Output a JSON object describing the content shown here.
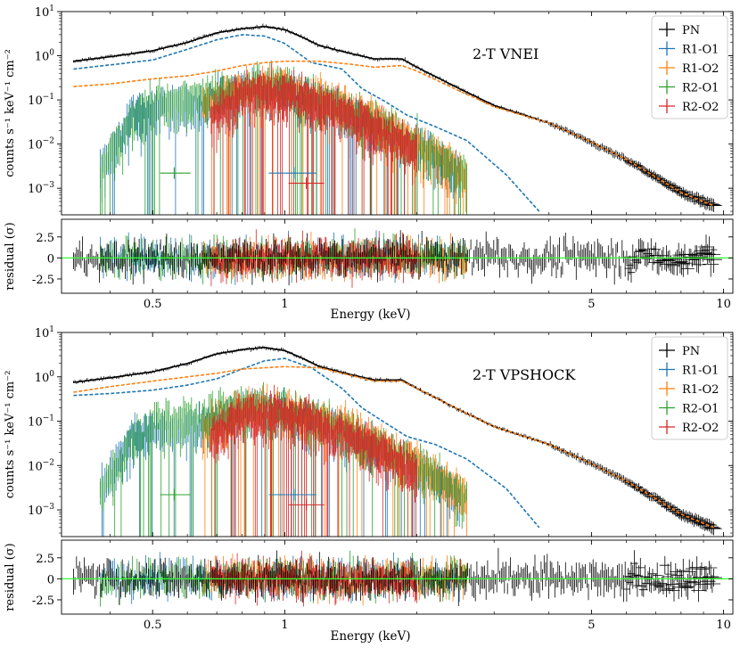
{
  "chart_data": [
    {
      "type": "line",
      "label": "2-T VNEI",
      "xlabel": "Energy (keV)",
      "ylabel": "counts s⁻¹ keV⁻¹ cm⁻²",
      "residual_ylabel": "residual (σ)",
      "xscale": "log",
      "yscale": "log",
      "xlim": [
        0.31,
        10.5
      ],
      "ylim": [
        0.00025,
        10
      ],
      "residual_ylim": [
        -4.2,
        4.6
      ],
      "xticks": [
        0.5,
        1,
        5,
        10
      ],
      "yticks": [
        {
          "value": 10,
          "base": "10",
          "exp": "1"
        },
        {
          "value": 1,
          "base": "10",
          "exp": "0"
        },
        {
          "value": 0.1,
          "base": "10",
          "exp": "−1"
        },
        {
          "value": 0.01,
          "base": "10",
          "exp": "−2"
        },
        {
          "value": 0.001,
          "base": "10",
          "exp": "−3"
        }
      ],
      "residual_yticks": [
        2.5,
        0,
        -2.5
      ],
      "legend": [
        "PN",
        "R1-O1",
        "R1-O2",
        "R2-O1",
        "R2-O2"
      ],
      "series": [
        {
          "name": "PN",
          "color": "#000000",
          "x": [
            0.33,
            0.4,
            0.5,
            0.6,
            0.7,
            0.8,
            0.9,
            1.0,
            1.1,
            1.2,
            1.4,
            1.6,
            1.85,
            2.0,
            2.5,
            3.0,
            4.0,
            5.0,
            6.0,
            7.0,
            8.0,
            9.5
          ],
          "y": [
            0.75,
            0.95,
            1.3,
            2.0,
            3.3,
            4.1,
            4.6,
            3.9,
            2.6,
            1.7,
            1.15,
            0.85,
            0.85,
            0.55,
            0.18,
            0.075,
            0.03,
            0.011,
            0.0045,
            0.0018,
            0.0008,
            0.0004
          ]
        },
        {
          "name": "R1-O1",
          "color": "#1f77b4",
          "x": [
            0.38,
            0.45,
            0.55,
            0.65,
            0.75,
            0.85,
            1.0,
            1.15,
            1.3,
            1.5,
            1.7,
            1.9,
            2.2,
            2.5
          ],
          "y": [
            0.003,
            0.05,
            0.08,
            0.08,
            0.15,
            0.25,
            0.18,
            0.12,
            0.07,
            0.035,
            0.02,
            0.012,
            0.006,
            0.002
          ]
        },
        {
          "name": "R1-O2",
          "color": "#ff7f0e",
          "x": [
            0.65,
            0.8,
            1.0,
            1.2,
            1.4,
            1.6,
            1.8,
            2.0,
            2.3,
            2.6
          ],
          "y": [
            0.08,
            0.2,
            0.2,
            0.12,
            0.07,
            0.04,
            0.02,
            0.012,
            0.005,
            0.002
          ]
        },
        {
          "name": "R2-O1",
          "color": "#2ca02c",
          "x": [
            0.38,
            0.45,
            0.5,
            0.55,
            0.6,
            0.7,
            0.8,
            0.9,
            1.0,
            1.2,
            1.4,
            1.6,
            1.9,
            2.2,
            2.6
          ],
          "y": [
            0.003,
            0.04,
            0.09,
            0.1,
            0.12,
            0.16,
            0.22,
            0.25,
            0.22,
            0.12,
            0.06,
            0.035,
            0.015,
            0.006,
            0.002
          ]
        },
        {
          "name": "R2-O2",
          "color": "#d62728",
          "x": [
            0.68,
            0.8,
            0.95,
            1.1,
            1.3,
            1.5,
            1.8,
            2.0
          ],
          "y": [
            0.05,
            0.15,
            0.18,
            0.13,
            0.07,
            0.04,
            0.015,
            0.008
          ]
        }
      ],
      "models": [
        {
          "name": "model-total",
          "color": "#000000",
          "style": "solid",
          "x": [
            0.33,
            0.4,
            0.5,
            0.6,
            0.7,
            0.8,
            0.9,
            1.0,
            1.1,
            1.2,
            1.4,
            1.6,
            1.85,
            2.0,
            2.5,
            3.0,
            4.0,
            5.0,
            6.0,
            7.0,
            8.0,
            9.5
          ],
          "y": [
            0.75,
            0.95,
            1.3,
            2.0,
            3.3,
            4.1,
            4.6,
            3.9,
            2.6,
            1.7,
            1.15,
            0.85,
            0.85,
            0.55,
            0.18,
            0.075,
            0.03,
            0.011,
            0.0045,
            0.0018,
            0.0008,
            0.0004
          ]
        },
        {
          "name": "cool-component",
          "color": "#1f77b4",
          "style": "dashed",
          "x": [
            0.33,
            0.4,
            0.5,
            0.6,
            0.7,
            0.8,
            0.9,
            1.0,
            1.15,
            1.35,
            1.5,
            1.7,
            1.9,
            2.2,
            2.6,
            3.2,
            3.8
          ],
          "y": [
            0.5,
            0.62,
            0.8,
            1.4,
            2.3,
            3.0,
            2.8,
            1.9,
            0.7,
            0.5,
            0.18,
            0.09,
            0.045,
            0.025,
            0.012,
            0.002,
            0.0003
          ]
        },
        {
          "name": "hot-component",
          "color": "#ff7f0e",
          "style": "dashed",
          "x": [
            0.33,
            0.4,
            0.5,
            0.6,
            0.7,
            0.8,
            0.9,
            1.0,
            1.2,
            1.4,
            1.6,
            1.85,
            2.0,
            2.5,
            3.0,
            4.0,
            5.0,
            6.0,
            7.0,
            8.0,
            9.5
          ],
          "y": [
            0.2,
            0.23,
            0.3,
            0.35,
            0.45,
            0.6,
            0.7,
            0.75,
            0.75,
            0.65,
            0.55,
            0.6,
            0.45,
            0.16,
            0.07,
            0.03,
            0.011,
            0.0045,
            0.0018,
            0.0008,
            0.0004
          ]
        }
      ]
    },
    {
      "type": "line",
      "label": "2-T VPSHOCK",
      "xlabel": "Energy (keV)",
      "ylabel": "counts s⁻¹ keV⁻¹ cm⁻²",
      "residual_ylabel": "residual (σ)",
      "xscale": "log",
      "yscale": "log",
      "xlim": [
        0.31,
        10.5
      ],
      "ylim": [
        0.00025,
        10
      ],
      "residual_ylim": [
        -4.2,
        4.6
      ],
      "xticks": [
        0.5,
        1,
        5,
        10
      ],
      "yticks": [
        {
          "value": 10,
          "base": "10",
          "exp": "1"
        },
        {
          "value": 1,
          "base": "10",
          "exp": "0"
        },
        {
          "value": 0.1,
          "base": "10",
          "exp": "−1"
        },
        {
          "value": 0.01,
          "base": "10",
          "exp": "−2"
        },
        {
          "value": 0.001,
          "base": "10",
          "exp": "−3"
        }
      ],
      "residual_yticks": [
        2.5,
        0,
        -2.5
      ],
      "legend": [
        "PN",
        "R1-O1",
        "R1-O2",
        "R2-O1",
        "R2-O2"
      ],
      "series": [
        {
          "name": "PN",
          "color": "#000000",
          "x": [
            0.33,
            0.4,
            0.5,
            0.6,
            0.7,
            0.8,
            0.9,
            1.0,
            1.1,
            1.2,
            1.4,
            1.6,
            1.85,
            2.0,
            2.5,
            3.0,
            4.0,
            5.0,
            6.0,
            7.0,
            8.0,
            9.5
          ],
          "y": [
            0.75,
            0.95,
            1.3,
            2.0,
            3.3,
            4.1,
            4.6,
            3.9,
            2.6,
            1.7,
            1.15,
            0.85,
            0.85,
            0.55,
            0.18,
            0.075,
            0.03,
            0.011,
            0.0045,
            0.0018,
            0.0008,
            0.0004
          ]
        },
        {
          "name": "R1-O1",
          "color": "#1f77b4",
          "x": [
            0.38,
            0.45,
            0.55,
            0.65,
            0.75,
            0.85,
            1.0,
            1.15,
            1.3,
            1.5,
            1.7,
            1.9,
            2.2,
            2.5
          ],
          "y": [
            0.003,
            0.05,
            0.08,
            0.08,
            0.15,
            0.25,
            0.18,
            0.12,
            0.07,
            0.035,
            0.02,
            0.012,
            0.006,
            0.002
          ]
        },
        {
          "name": "R1-O2",
          "color": "#ff7f0e",
          "x": [
            0.65,
            0.8,
            1.0,
            1.2,
            1.4,
            1.6,
            1.8,
            2.0,
            2.3,
            2.6
          ],
          "y": [
            0.08,
            0.2,
            0.2,
            0.12,
            0.07,
            0.04,
            0.02,
            0.012,
            0.005,
            0.002
          ]
        },
        {
          "name": "R2-O1",
          "color": "#2ca02c",
          "x": [
            0.38,
            0.45,
            0.5,
            0.55,
            0.6,
            0.7,
            0.8,
            0.9,
            1.0,
            1.2,
            1.4,
            1.6,
            1.9,
            2.2,
            2.6
          ],
          "y": [
            0.003,
            0.04,
            0.09,
            0.1,
            0.12,
            0.16,
            0.22,
            0.25,
            0.22,
            0.12,
            0.06,
            0.035,
            0.015,
            0.006,
            0.002
          ]
        },
        {
          "name": "R2-O2",
          "color": "#d62728",
          "x": [
            0.68,
            0.8,
            0.95,
            1.1,
            1.3,
            1.5,
            1.8,
            2.0
          ],
          "y": [
            0.05,
            0.15,
            0.18,
            0.13,
            0.07,
            0.04,
            0.015,
            0.008
          ]
        }
      ],
      "models": [
        {
          "name": "model-total",
          "color": "#000000",
          "style": "solid",
          "x": [
            0.33,
            0.4,
            0.5,
            0.6,
            0.7,
            0.8,
            0.9,
            1.0,
            1.1,
            1.2,
            1.4,
            1.6,
            1.85,
            2.0,
            2.5,
            3.0,
            4.0,
            5.0,
            6.0,
            7.0,
            8.0,
            9.5
          ],
          "y": [
            0.75,
            0.95,
            1.3,
            2.0,
            3.3,
            4.1,
            4.6,
            3.9,
            2.6,
            1.7,
            1.15,
            0.85,
            0.85,
            0.55,
            0.18,
            0.075,
            0.03,
            0.011,
            0.0045,
            0.0018,
            0.0008,
            0.0004
          ]
        },
        {
          "name": "cool-component",
          "color": "#1f77b4",
          "style": "dashed",
          "x": [
            0.33,
            0.4,
            0.5,
            0.6,
            0.7,
            0.8,
            0.9,
            1.0,
            1.15,
            1.35,
            1.5,
            1.7,
            1.9,
            2.2,
            2.6,
            3.2,
            3.8
          ],
          "y": [
            0.38,
            0.42,
            0.5,
            0.65,
            0.9,
            1.5,
            2.3,
            2.6,
            1.6,
            0.55,
            0.2,
            0.09,
            0.045,
            0.03,
            0.014,
            0.003,
            0.0004
          ]
        },
        {
          "name": "hot-component",
          "color": "#ff7f0e",
          "style": "dashed",
          "x": [
            0.33,
            0.4,
            0.5,
            0.6,
            0.7,
            0.8,
            0.9,
            1.0,
            1.2,
            1.4,
            1.6,
            1.85,
            2.0,
            2.5,
            3.0,
            4.0,
            5.0,
            6.0,
            7.0,
            8.0,
            9.5
          ],
          "y": [
            0.45,
            0.6,
            0.8,
            1.0,
            1.2,
            1.5,
            1.6,
            1.7,
            1.6,
            1.1,
            0.8,
            0.8,
            0.55,
            0.18,
            0.075,
            0.03,
            0.011,
            0.0045,
            0.0018,
            0.0008,
            0.0004
          ]
        }
      ]
    }
  ]
}
